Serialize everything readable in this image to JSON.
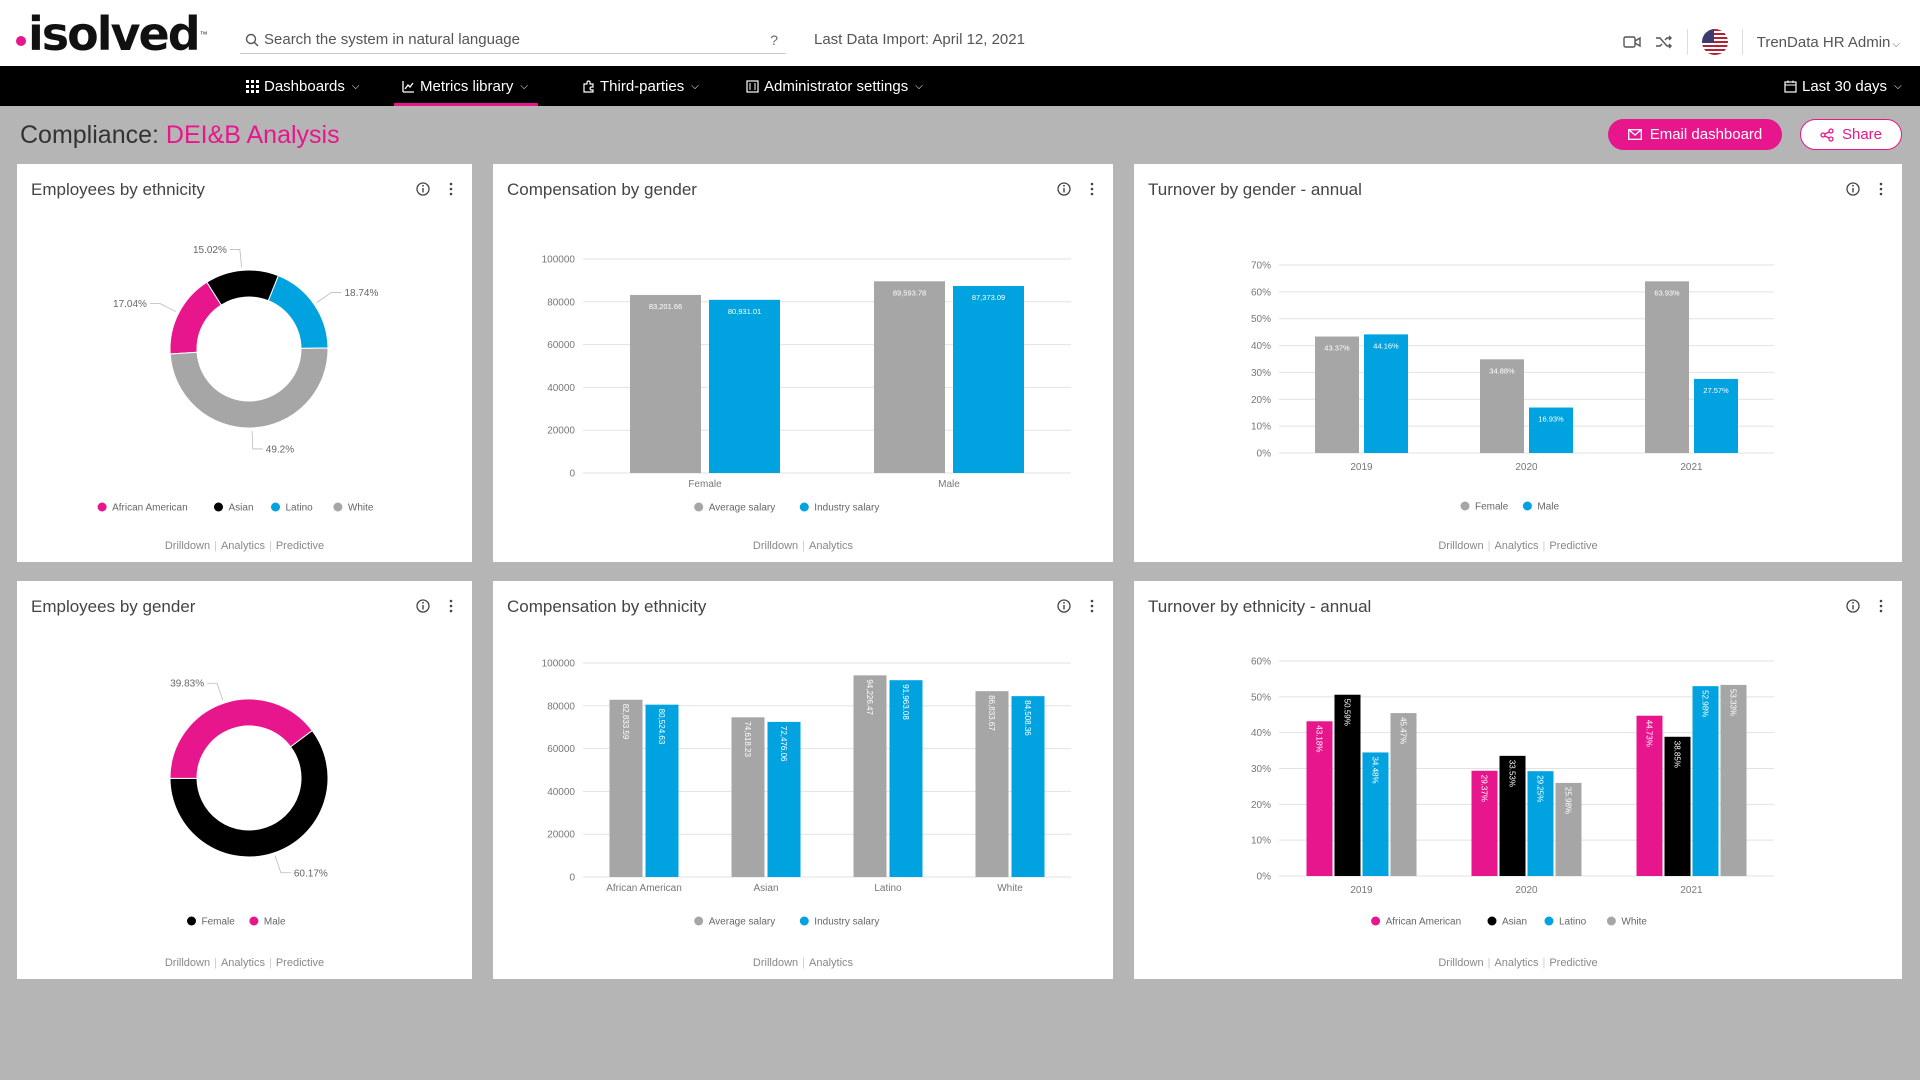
{
  "header": {
    "logo_text": "isolved",
    "search_placeholder": "Search the system in natural language",
    "search_help": "?",
    "last_import": "Last Data Import: April 12, 2021",
    "user_name": "TrenData HR Admin"
  },
  "nav": {
    "dashboards": "Dashboards",
    "metrics_library": "Metrics library",
    "third_parties": "Third-parties",
    "admin_settings": "Administrator settings",
    "date_range": "Last 30 days"
  },
  "page": {
    "title_prefix": "Compliance:",
    "title_accent": "DEI&B Analysis",
    "email_label": "Email dashboard",
    "share_label": "Share"
  },
  "colors": {
    "accent": "#e8168c",
    "african_american": "#e8168c",
    "asian": "#000000",
    "latino": "#00a3e0",
    "white": "#a6a6a6",
    "gray_bar": "#a6a6a6",
    "blue_bar": "#00a3e0"
  },
  "footer_links": {
    "drilldown": "Drilldown",
    "analytics": "Analytics",
    "predictive": "Predictive"
  },
  "cards": {
    "emp_ethnicity": {
      "title": "Employees by ethnicity"
    },
    "comp_gender": {
      "title": "Compensation by gender"
    },
    "turnover_gender": {
      "title": "Turnover by gender - annual"
    },
    "emp_gender": {
      "title": "Employees by gender"
    },
    "comp_ethnicity": {
      "title": "Compensation by ethnicity"
    },
    "turnover_ethnicity": {
      "title": "Turnover by ethnicity - annual"
    }
  },
  "chart_data": [
    {
      "id": "emp_ethnicity",
      "type": "pie",
      "donut": true,
      "labels": [
        "African American",
        "Asian",
        "Latino",
        "White"
      ],
      "values": [
        17.04,
        15.02,
        18.74,
        49.2
      ],
      "value_labels": [
        "17.04%",
        "15.02%",
        "18.74%",
        "49.2%"
      ],
      "colors": [
        "#e8168c",
        "#000000",
        "#00a3e0",
        "#a6a6a6"
      ],
      "legend": "bottom"
    },
    {
      "id": "comp_gender",
      "type": "bar",
      "categories": [
        "Female",
        "Male"
      ],
      "series": [
        {
          "name": "Average salary",
          "values": [
            83201.66,
            89593.78
          ],
          "labels": [
            "83,201.66",
            "89,593.78"
          ]
        },
        {
          "name": "Industry salary",
          "values": [
            80931.01,
            87373.09
          ],
          "labels": [
            "80,931.01",
            "87,373.09"
          ]
        }
      ],
      "yticks": [
        "0",
        "20000",
        "40000",
        "60000",
        "80000",
        "100000"
      ],
      "ylim": [
        0,
        100000
      ],
      "legend": "bottom"
    },
    {
      "id": "turnover_gender",
      "type": "bar",
      "categories": [
        "2019",
        "2020",
        "2021"
      ],
      "series": [
        {
          "name": "Female",
          "values": [
            43.37,
            34.88,
            63.93
          ],
          "labels": [
            "43.37%",
            "34.88%",
            "63.93%"
          ]
        },
        {
          "name": "Male",
          "values": [
            44.16,
            16.93,
            27.57
          ],
          "labels": [
            "44.16%",
            "16.93%",
            "27.57%"
          ]
        }
      ],
      "yticks": [
        "0%",
        "10%",
        "20%",
        "30%",
        "40%",
        "50%",
        "60%",
        "70%"
      ],
      "ylim": [
        0,
        70
      ],
      "legend": "bottom"
    },
    {
      "id": "emp_gender",
      "type": "pie",
      "donut": true,
      "labels": [
        "Female",
        "Male"
      ],
      "values": [
        60.17,
        39.83
      ],
      "value_labels": [
        "60.17%",
        "39.83%"
      ],
      "colors": [
        "#000000",
        "#e8168c"
      ],
      "legend": "bottom"
    },
    {
      "id": "comp_ethnicity",
      "type": "bar",
      "categories": [
        "African American",
        "Asian",
        "Latino",
        "White"
      ],
      "series": [
        {
          "name": "Average salary",
          "values": [
            82833.59,
            74618.23,
            94226.47,
            86833.67
          ],
          "labels": [
            "82,833.59",
            "74,618.23",
            "94,226.47",
            "86,833.67"
          ]
        },
        {
          "name": "Industry salary",
          "values": [
            80524.63,
            72476.06,
            91963.08,
            84508.36
          ],
          "labels": [
            "80,524.63",
            "72,476.06",
            "91,963.08",
            "84,508.36"
          ]
        }
      ],
      "yticks": [
        "0",
        "20000",
        "40000",
        "60000",
        "80000",
        "100000"
      ],
      "ylim": [
        0,
        100000
      ],
      "legend": "bottom"
    },
    {
      "id": "turnover_ethnicity",
      "type": "bar",
      "categories": [
        "2019",
        "2020",
        "2021"
      ],
      "series": [
        {
          "name": "African American",
          "values": [
            43.18,
            29.37,
            44.73
          ],
          "labels": [
            "43.18%",
            "29.37%",
            "44.73%"
          ]
        },
        {
          "name": "Asian",
          "values": [
            50.59,
            33.53,
            38.85
          ],
          "labels": [
            "50.59%",
            "33.53%",
            "38.85%"
          ]
        },
        {
          "name": "Latino",
          "values": [
            34.48,
            29.25,
            52.98
          ],
          "labels": [
            "34.48%",
            "29.25%",
            "52.98%"
          ]
        },
        {
          "name": "White",
          "values": [
            45.47,
            25.98,
            53.33
          ],
          "labels": [
            "45.47%",
            "25.98%",
            "53.33%"
          ]
        }
      ],
      "yticks": [
        "0%",
        "10%",
        "20%",
        "30%",
        "40%",
        "50%",
        "60%"
      ],
      "ylim": [
        0,
        60
      ],
      "legend": "bottom"
    }
  ]
}
